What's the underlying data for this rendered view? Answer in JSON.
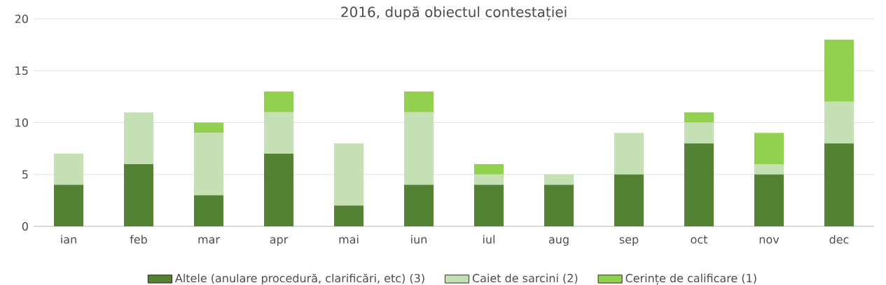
{
  "chart_data": {
    "type": "bar",
    "stacked": true,
    "title": "2016, după obiectul contestației",
    "categories": [
      "ian",
      "feb",
      "mar",
      "apr",
      "mai",
      "iun",
      "iul",
      "aug",
      "sep",
      "oct",
      "nov",
      "dec"
    ],
    "series": [
      {
        "name": "Altele (anulare procedură, clarificări, etc) (3)",
        "color": "#548235",
        "values": [
          4,
          6,
          3,
          7,
          2,
          4,
          4,
          4,
          5,
          8,
          5,
          8
        ]
      },
      {
        "name": "Caiet de sarcini (2)",
        "color": "#c5e0b4",
        "values": [
          3,
          5,
          6,
          4,
          6,
          7,
          1,
          1,
          4,
          2,
          1,
          4
        ]
      },
      {
        "name": "Cerințe de calificare (1)",
        "color": "#92d050",
        "values": [
          0,
          0,
          1,
          2,
          0,
          2,
          1,
          0,
          0,
          1,
          3,
          6
        ]
      }
    ],
    "ylim": [
      0,
      20
    ],
    "yticks": [
      0,
      5,
      10,
      15,
      20
    ],
    "grid": "y",
    "legend": "bottom"
  }
}
